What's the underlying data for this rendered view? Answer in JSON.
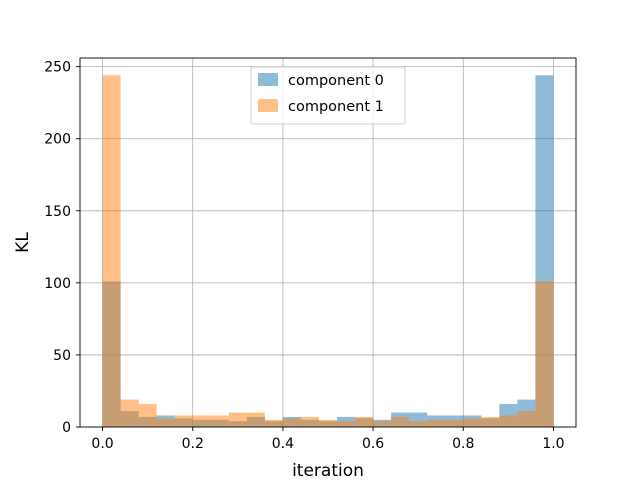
{
  "chart_data": {
    "type": "bar",
    "subtype": "overlaid-histogram",
    "title": "",
    "xlabel": "iteration",
    "ylabel": "KL",
    "xlim": [
      -0.05,
      1.05
    ],
    "ylim": [
      0,
      256
    ],
    "xticks": [
      0.0,
      0.2,
      0.4,
      0.6,
      0.8,
      1.0
    ],
    "xtick_labels": [
      "0.0",
      "0.2",
      "0.4",
      "0.6",
      "0.8",
      "1.0"
    ],
    "yticks": [
      0,
      50,
      100,
      150,
      200,
      250
    ],
    "ytick_labels": [
      "0",
      "50",
      "100",
      "150",
      "200",
      "250"
    ],
    "grid": true,
    "legend_position": "top-center",
    "bins": 25,
    "bin_range": [
      0.0,
      1.0
    ],
    "series": [
      {
        "name": "component 0",
        "color": "#1f77b4",
        "alpha": 0.5,
        "values": [
          101,
          11,
          7,
          8,
          6,
          5,
          5,
          4,
          7,
          4,
          7,
          5,
          4,
          7,
          6,
          5,
          10,
          10,
          8,
          8,
          8,
          6,
          16,
          19,
          244
        ]
      },
      {
        "name": "component 1",
        "color": "#ff7f0e",
        "alpha": 0.5,
        "values": [
          244,
          19,
          16,
          6,
          8,
          8,
          8,
          10,
          10,
          5,
          6,
          7,
          5,
          4,
          7,
          4,
          7,
          4,
          5,
          5,
          6,
          7,
          8,
          11,
          101
        ]
      }
    ]
  }
}
